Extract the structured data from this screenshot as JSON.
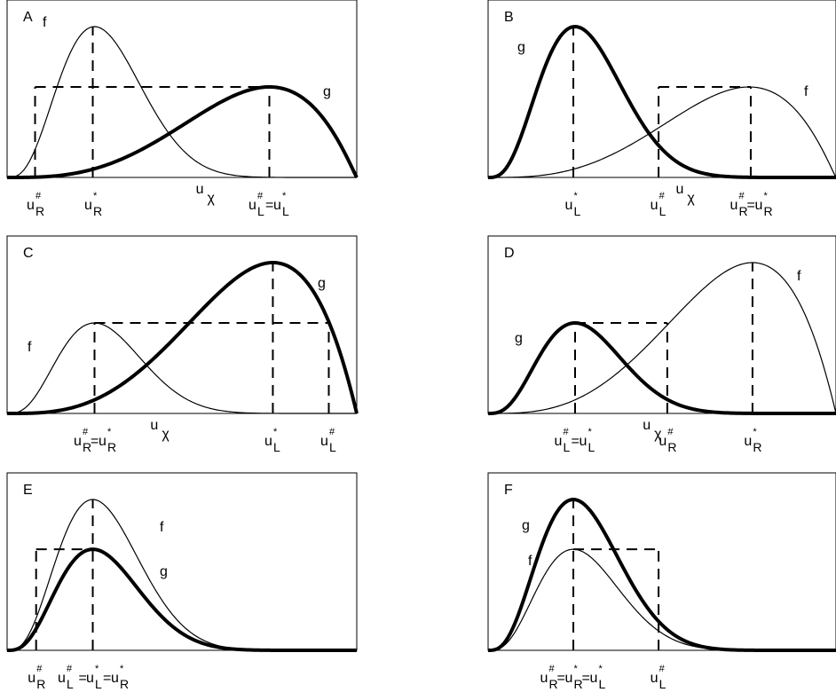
{
  "panels": [
    {
      "id": "A",
      "label": "A",
      "curves": [
        {
          "name": "f",
          "label": "f",
          "peak": 0.25,
          "shape": 2.2,
          "height": 1.0,
          "weight": "thin"
        },
        {
          "name": "g",
          "label": "g",
          "peak": 0.75,
          "shape": 2.2,
          "height": 0.6,
          "weight": "thick"
        }
      ],
      "markers": [
        {
          "pos": 0.08,
          "top": 0.6,
          "sym": "#",
          "base": "u",
          "sub": "R"
        },
        {
          "pos": 0.245,
          "top": 1.0,
          "sym": "*",
          "base": "u",
          "sub": "R"
        },
        {
          "pos": 0.75,
          "top": 0.6,
          "label": "u#L=u*L"
        }
      ],
      "hline": {
        "from": 0.08,
        "to": 0.75,
        "level": 0.6
      },
      "uchi": {
        "pos": 0.56,
        "text": "u",
        "sub": "χ"
      }
    },
    {
      "id": "B",
      "label": "B",
      "curves": [
        {
          "name": "g",
          "label": "g",
          "peak": 0.25,
          "shape": 2.2,
          "height": 1.0,
          "weight": "thick"
        },
        {
          "name": "f",
          "label": "f",
          "peak": 0.75,
          "shape": 2.2,
          "height": 0.6,
          "weight": "thin"
        }
      ],
      "markers": [
        {
          "pos": 0.245,
          "top": 1.0,
          "sym": "*",
          "base": "u",
          "sub": "L"
        },
        {
          "pos": 0.49,
          "top": 0.6,
          "sym": "#",
          "base": "u",
          "sub": "L"
        },
        {
          "pos": 0.755,
          "top": 0.6,
          "label": "u#R=u*R"
        }
      ],
      "hline": {
        "from": 0.49,
        "to": 0.755,
        "level": 0.6
      },
      "uchi": {
        "pos": 0.56,
        "text": "u",
        "sub": "χ"
      }
    },
    {
      "id": "C",
      "label": "C",
      "curves": [
        {
          "name": "f",
          "label": "f",
          "peak": 0.25,
          "shape": 2.2,
          "height": 0.6,
          "weight": "thin"
        },
        {
          "name": "g",
          "label": "g",
          "peak": 0.76,
          "shape": 2.2,
          "height": 1.0,
          "weight": "thick"
        }
      ],
      "markers": [
        {
          "pos": 0.25,
          "top": 0.6,
          "label": "u#R=u*R"
        },
        {
          "pos": 0.76,
          "top": 1.0,
          "sym": "*",
          "base": "u",
          "sub": "L"
        },
        {
          "pos": 0.92,
          "top": 0.6,
          "sym": "#",
          "base": "u",
          "sub": "L"
        }
      ],
      "hline": {
        "from": 0.25,
        "to": 0.92,
        "level": 0.6
      },
      "uchi": {
        "pos": 0.43,
        "text": "u",
        "sub": "χ"
      }
    },
    {
      "id": "D",
      "label": "D",
      "curves": [
        {
          "name": "g",
          "label": "g",
          "peak": 0.25,
          "shape": 2.2,
          "height": 0.6,
          "weight": "thick"
        },
        {
          "name": "f",
          "label": "f",
          "peak": 0.76,
          "shape": 2.2,
          "height": 1.0,
          "weight": "thin"
        }
      ],
      "markers": [
        {
          "pos": 0.25,
          "top": 0.6,
          "label": "u#L=u*L"
        },
        {
          "pos": 0.515,
          "top": 0.6,
          "sym": "#",
          "base": "u",
          "sub": "R"
        },
        {
          "pos": 0.76,
          "top": 1.0,
          "sym": "*",
          "base": "u",
          "sub": "R"
        }
      ],
      "hline": {
        "from": 0.25,
        "to": 0.515,
        "level": 0.6
      },
      "uchi": {
        "pos": 0.465,
        "text": "u",
        "sub": "χ"
      }
    },
    {
      "id": "E",
      "label": "E",
      "curves": [
        {
          "name": "f",
          "label": "f",
          "peak": 0.245,
          "shape": 2.2,
          "height": 1.0,
          "weight": "thin"
        },
        {
          "name": "g",
          "label": "g",
          "peak": 0.245,
          "shape": 2.2,
          "height": 0.67,
          "weight": "thick"
        }
      ],
      "markers": [
        {
          "pos": 0.083,
          "top": 0.67,
          "sym": "#",
          "base": "u",
          "sub": "R"
        },
        {
          "pos": 0.245,
          "top": 1.0,
          "label": "u#L =u*L=u*R"
        }
      ],
      "hline": {
        "from": 0.083,
        "to": 0.245,
        "level": 0.67
      }
    },
    {
      "id": "F",
      "label": "F",
      "curves": [
        {
          "name": "g",
          "label": "g",
          "peak": 0.245,
          "shape": 2.2,
          "height": 1.0,
          "weight": "thick"
        },
        {
          "name": "f",
          "label": "f",
          "peak": 0.245,
          "shape": 2.2,
          "height": 0.67,
          "weight": "thin"
        }
      ],
      "markers": [
        {
          "pos": 0.245,
          "top": 1.0,
          "label": "u#R=u*R=u*L"
        },
        {
          "pos": 0.49,
          "top": 0.67,
          "sym": "#",
          "base": "u",
          "sub": "L"
        }
      ],
      "hline": {
        "from": 0.245,
        "to": 0.49,
        "level": 0.67
      }
    }
  ],
  "colors": {
    "line": "#000000",
    "background": "#ffffff"
  }
}
